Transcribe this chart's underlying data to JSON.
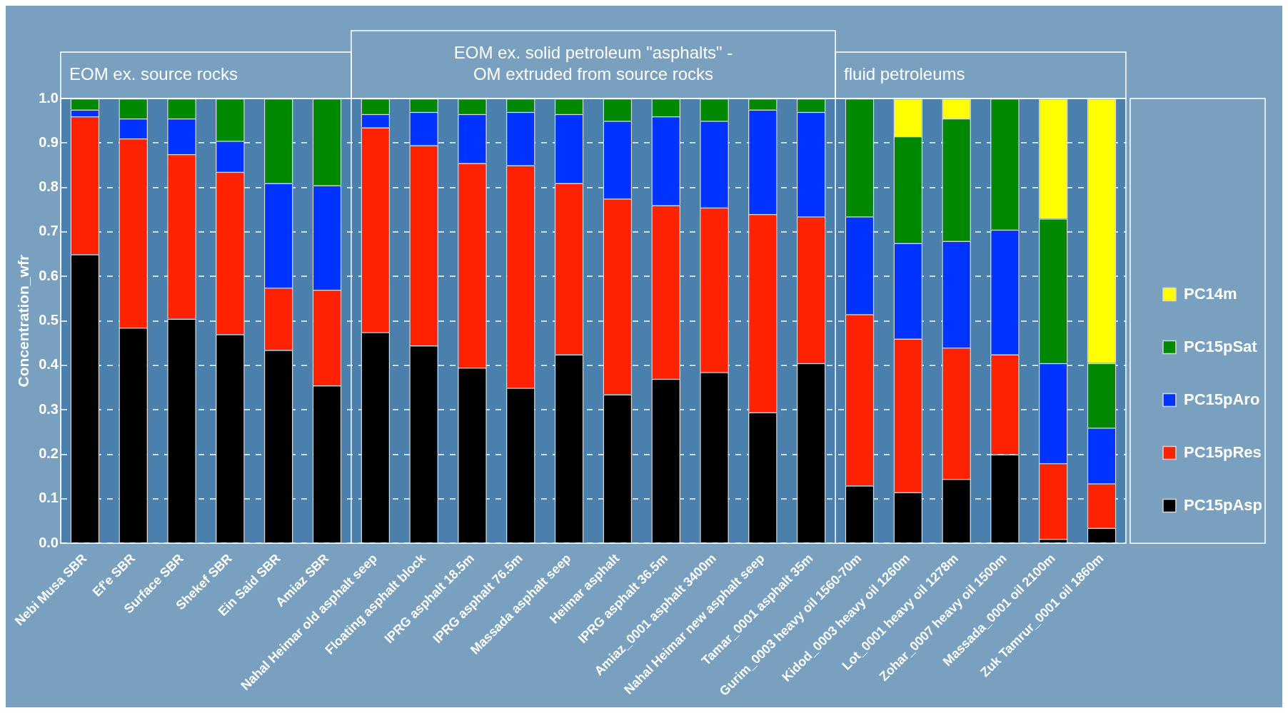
{
  "chart_data": {
    "type": "bar",
    "stacked": true,
    "ylabel": "Concentration_wfr",
    "annotations": [
      "EOM ex. source rocks",
      "EOM ex. solid petroleum \"asphalts\" -\nOM extruded from source rocks",
      "fluid petroleums"
    ],
    "categories": [
      "Nebi Musa SBR",
      "Ef'e SBR",
      "Surface SBR",
      "Shekef SBR",
      "Ein Said SBR",
      "Amiaz SBR",
      "Nahal Heimar old asphalt seep",
      "Floating asphalt block",
      "IPRG asphalt 18.5m",
      "IPRG asphalt 76.5m",
      "Massada asphalt seep",
      "Heimar asphalt",
      "IPRG asphalt 36.5m",
      "Amiaz_0001 asphalt 3400m",
      "Nahal Heimar new asphalt seep",
      "Tamar_0001 asphalt 35m",
      "Gurim_0003 heavy oil 1560-70m",
      "Kidod_0003 heavy oil 1260m",
      "Lot_0001 heavy oil 1278m",
      "Zohar_0007 heavy oil 1500m",
      "Massada_0001 oil 2100m",
      "Zuk Tamrur_0001 oil 1860m"
    ],
    "series": [
      {
        "name": "PC15pAsp",
        "color": "#000000",
        "values": [
          0.65,
          0.485,
          0.505,
          0.47,
          0.435,
          0.355,
          0.475,
          0.445,
          0.395,
          0.35,
          0.425,
          0.335,
          0.37,
          0.385,
          0.295,
          0.405,
          0.13,
          0.115,
          0.145,
          0.2,
          0.01,
          0.035
        ]
      },
      {
        "name": "PC15pRes",
        "color": "#ff2200",
        "values": [
          0.31,
          0.425,
          0.37,
          0.365,
          0.14,
          0.215,
          0.46,
          0.45,
          0.46,
          0.5,
          0.385,
          0.44,
          0.39,
          0.37,
          0.445,
          0.33,
          0.385,
          0.345,
          0.295,
          0.225,
          0.17,
          0.1
        ]
      },
      {
        "name": "PC15pAro",
        "color": "#0033ff",
        "values": [
          0.015,
          0.045,
          0.08,
          0.07,
          0.235,
          0.235,
          0.03,
          0.075,
          0.11,
          0.12,
          0.155,
          0.175,
          0.2,
          0.195,
          0.235,
          0.235,
          0.22,
          0.215,
          0.24,
          0.28,
          0.225,
          0.125
        ]
      },
      {
        "name": "PC15pSat",
        "color": "#008800",
        "values": [
          0.025,
          0.045,
          0.045,
          0.095,
          0.19,
          0.195,
          0.035,
          0.03,
          0.035,
          0.03,
          0.035,
          0.05,
          0.04,
          0.05,
          0.025,
          0.03,
          0.265,
          0.24,
          0.275,
          0.295,
          0.325,
          0.145
        ]
      },
      {
        "name": "PC14m",
        "color": "#ffff00",
        "values": [
          0,
          0,
          0,
          0,
          0,
          0,
          0,
          0,
          0,
          0,
          0,
          0,
          0,
          0,
          0,
          0,
          0,
          0.085,
          0.045,
          0,
          0.27,
          0.595
        ]
      }
    ],
    "ylim": [
      0,
      1
    ],
    "yticks": [
      {
        "value": 0,
        "label": "0.0"
      },
      {
        "value": 0.1,
        "label": "0.1"
      },
      {
        "value": 0.2,
        "label": "0.2"
      },
      {
        "value": 0.3,
        "label": "0.3"
      },
      {
        "value": 0.4,
        "label": "0.4"
      },
      {
        "value": 0.5,
        "label": "0.5"
      },
      {
        "value": 0.6,
        "label": "0.6"
      },
      {
        "value": 0.7,
        "label": "0.7"
      },
      {
        "value": 0.8,
        "label": "0.8"
      },
      {
        "value": 0.9,
        "label": "0.9"
      },
      {
        "value": 1,
        "label": "1.0"
      }
    ],
    "grid": "y",
    "legend": "right"
  }
}
